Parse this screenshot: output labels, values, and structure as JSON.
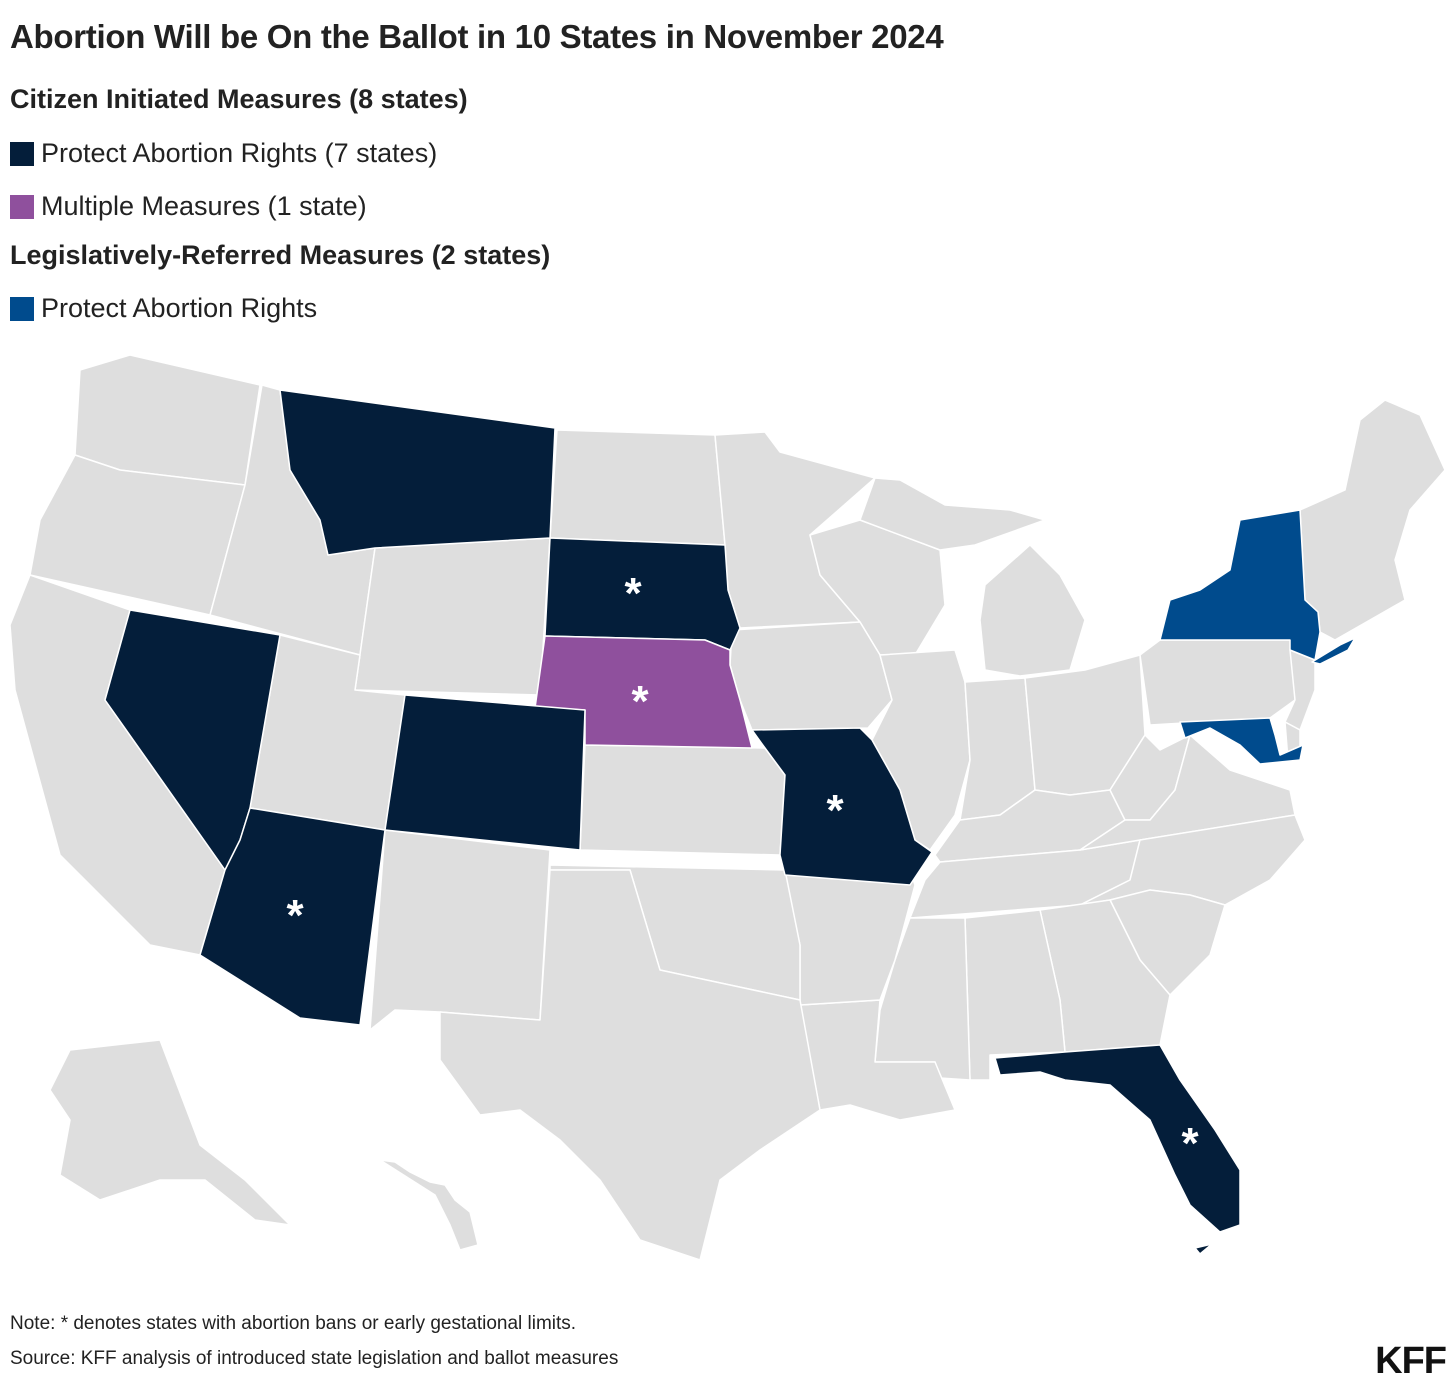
{
  "title": "Abortion Will be On the Ballot in 10 States in November 2024",
  "legend": {
    "citizen_heading": "Citizen Initiated Measures (8 states)",
    "citizen_items": [
      {
        "label": "Protect Abortion Rights (7 states)",
        "color": "#041e3a"
      },
      {
        "label": "Multiple Measures (1 state)",
        "color": "#8f509d"
      }
    ],
    "legislative_heading": "Legislatively-Referred Measures (2 states)",
    "legislative_items": [
      {
        "label": "Protect Abortion Rights",
        "color": "#004b8d"
      }
    ]
  },
  "colors": {
    "no_measure": "#dedede",
    "citizen_protect": "#041e3a",
    "multiple_measures": "#8f509d",
    "legislative_protect": "#004b8d",
    "border": "#ffffff"
  },
  "map": {
    "states_with_measures": [
      {
        "state": "Montana",
        "category": "citizen_protect",
        "star": false
      },
      {
        "state": "Nevada",
        "category": "citizen_protect",
        "star": false
      },
      {
        "state": "Arizona",
        "category": "citizen_protect",
        "star": true
      },
      {
        "state": "Colorado",
        "category": "citizen_protect",
        "star": false
      },
      {
        "state": "South Dakota",
        "category": "citizen_protect",
        "star": true
      },
      {
        "state": "Missouri",
        "category": "citizen_protect",
        "star": true
      },
      {
        "state": "Florida",
        "category": "citizen_protect",
        "star": true
      },
      {
        "state": "Nebraska",
        "category": "multiple_measures",
        "star": true
      },
      {
        "state": "New York",
        "category": "legislative_protect",
        "star": false
      },
      {
        "state": "Maryland",
        "category": "legislative_protect",
        "star": false
      }
    ],
    "star_symbol": "*"
  },
  "footer": {
    "note": "Note: * denotes states with abortion bans or early gestational limits.",
    "source": "Source: KFF analysis of introduced state legislation and ballot measures",
    "logo": "KFF"
  }
}
